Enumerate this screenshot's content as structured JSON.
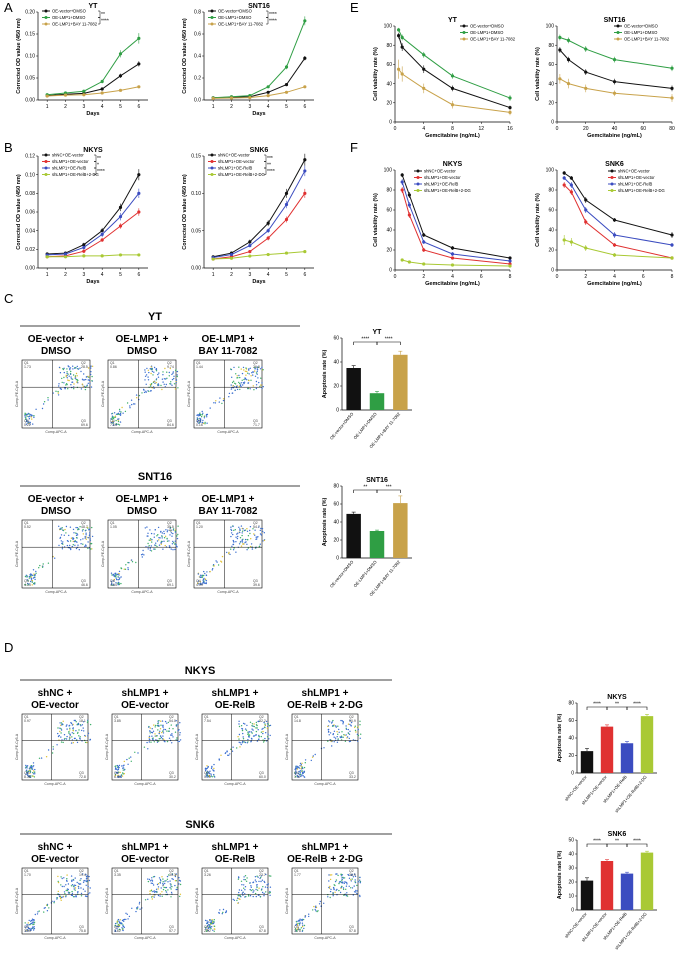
{
  "panels": [
    "A",
    "B",
    "C",
    "D",
    "E",
    "F"
  ],
  "growth_charts": [
    {
      "id": "A-YT",
      "title": "YT",
      "xlabel": "Days",
      "ylabel": "Corrected OD value (450 nm)",
      "x": [
        1,
        2,
        3,
        4,
        5,
        6
      ],
      "ylim": [
        0,
        0.2
      ],
      "yticks": [
        "0.00",
        "0.05",
        "0.10",
        "0.15",
        "0.20"
      ],
      "series": [
        {
          "name": "OE-vector+DMSO",
          "color": "#111111",
          "values": [
            0.01,
            0.013,
            0.015,
            0.025,
            0.055,
            0.082
          ],
          "err": [
            0.001,
            0.001,
            0.002,
            0.003,
            0.005,
            0.006
          ]
        },
        {
          "name": "OE-LMP1+DMSO",
          "color": "#2f9e44",
          "values": [
            0.012,
            0.016,
            0.02,
            0.042,
            0.105,
            0.14
          ],
          "err": [
            0.001,
            0.001,
            0.002,
            0.004,
            0.008,
            0.012
          ]
        },
        {
          "name": "OE-LMP1+BAY 11-7082",
          "color": "#c8a24a",
          "values": [
            0.009,
            0.011,
            0.012,
            0.016,
            0.022,
            0.03
          ],
          "err": [
            0.001,
            0.001,
            0.001,
            0.002,
            0.002,
            0.003
          ]
        }
      ],
      "stars": [
        "**",
        "****"
      ]
    },
    {
      "id": "A-SNT16",
      "title": "SNT16",
      "xlabel": "Days",
      "ylabel": "Corrected OD value (450 nm)",
      "x": [
        1,
        2,
        3,
        4,
        5,
        6
      ],
      "ylim": [
        0,
        0.8
      ],
      "yticks": [
        "0.0",
        "0.2",
        "0.4",
        "0.6",
        "0.8"
      ],
      "series": [
        {
          "name": "OE-vector+DMSO",
          "color": "#111111",
          "values": [
            0.02,
            0.025,
            0.03,
            0.07,
            0.14,
            0.38
          ],
          "err": [
            0.003,
            0.003,
            0.004,
            0.006,
            0.01,
            0.02
          ]
        },
        {
          "name": "OE-LMP1+DMSO",
          "color": "#2f9e44",
          "values": [
            0.02,
            0.03,
            0.04,
            0.12,
            0.3,
            0.72
          ],
          "err": [
            0.003,
            0.004,
            0.005,
            0.01,
            0.02,
            0.04
          ]
        },
        {
          "name": "OE-LMP1+BAY 11-7082",
          "color": "#c8a24a",
          "values": [
            0.015,
            0.018,
            0.022,
            0.04,
            0.07,
            0.12
          ],
          "err": [
            0.002,
            0.002,
            0.003,
            0.004,
            0.006,
            0.008
          ]
        }
      ],
      "stars": [
        "****",
        "****"
      ]
    },
    {
      "id": "B-NKYS",
      "title": "NKYS",
      "xlabel": "Days",
      "ylabel": "Corrected OD value (450 nm)",
      "x": [
        1,
        2,
        3,
        4,
        5,
        6
      ],
      "ylim": [
        0,
        0.12
      ],
      "yticks": [
        "0.00",
        "0.02",
        "0.04",
        "0.06",
        "0.08",
        "0.10",
        "0.12"
      ],
      "series": [
        {
          "name": "shNC+OE-vector",
          "color": "#111111",
          "values": [
            0.015,
            0.016,
            0.025,
            0.04,
            0.065,
            0.1
          ],
          "err": [
            0.001,
            0.001,
            0.002,
            0.003,
            0.004,
            0.006
          ]
        },
        {
          "name": "shLMP1+OE-vector",
          "color": "#e03131",
          "values": [
            0.012,
            0.013,
            0.018,
            0.03,
            0.045,
            0.06
          ],
          "err": [
            0.001,
            0.001,
            0.002,
            0.002,
            0.003,
            0.004
          ]
        },
        {
          "name": "shLMP1+OE-RelB",
          "color": "#3b4cc0",
          "values": [
            0.014,
            0.015,
            0.022,
            0.036,
            0.055,
            0.08
          ],
          "err": [
            0.001,
            0.001,
            0.002,
            0.003,
            0.004,
            0.005
          ]
        },
        {
          "name": "shLMP1+OE-RelB+2-DG",
          "color": "#a9c934",
          "values": [
            0.012,
            0.012,
            0.013,
            0.013,
            0.014,
            0.014
          ],
          "err": [
            0.001,
            0.001,
            0.001,
            0.001,
            0.001,
            0.001
          ]
        }
      ],
      "stars": [
        "**",
        "*",
        "****"
      ]
    },
    {
      "id": "B-SNK6",
      "title": "SNK6",
      "xlabel": "Days",
      "ylabel": "Corrected OD value (450 nm)",
      "x": [
        1,
        2,
        3,
        4,
        5,
        6
      ],
      "ylim": [
        0,
        0.15
      ],
      "yticks": [
        "0.00",
        "0.05",
        "0.10",
        "0.15"
      ],
      "series": [
        {
          "name": "shNC+OE-vector",
          "color": "#111111",
          "values": [
            0.015,
            0.02,
            0.035,
            0.06,
            0.1,
            0.145
          ],
          "err": [
            0.001,
            0.002,
            0.003,
            0.004,
            0.006,
            0.008
          ]
        },
        {
          "name": "shLMP1+OE-vector",
          "color": "#e03131",
          "values": [
            0.012,
            0.015,
            0.022,
            0.04,
            0.065,
            0.1
          ],
          "err": [
            0.001,
            0.001,
            0.002,
            0.003,
            0.004,
            0.006
          ]
        },
        {
          "name": "shLMP1+OE-RelB",
          "color": "#3b4cc0",
          "values": [
            0.014,
            0.018,
            0.03,
            0.05,
            0.085,
            0.13
          ],
          "err": [
            0.001,
            0.001,
            0.002,
            0.003,
            0.005,
            0.007
          ]
        },
        {
          "name": "shLMP1+OE-RelB+2-DG",
          "color": "#a9c934",
          "values": [
            0.012,
            0.013,
            0.016,
            0.018,
            0.02,
            0.022
          ],
          "err": [
            0.001,
            0.001,
            0.001,
            0.002,
            0.002,
            0.002
          ]
        }
      ],
      "stars": [
        "***",
        "**",
        "****"
      ]
    }
  ],
  "viability_charts": [
    {
      "id": "E-YT",
      "title": "YT",
      "xlabel": "Gemcitabine (ng/mL)",
      "ylabel": "Cell viability rate (%)",
      "x": [
        0.5,
        1,
        4,
        8,
        16
      ],
      "xlim": [
        0,
        16
      ],
      "xticks": [
        "0",
        "4",
        "8",
        "12",
        "16"
      ],
      "ylim": [
        0,
        100
      ],
      "yticks": [
        "0",
        "20",
        "40",
        "60",
        "80",
        "100"
      ],
      "series": [
        {
          "name": "OE-vector+DMSO",
          "color": "#111111",
          "values": [
            90,
            78,
            55,
            35,
            15
          ],
          "err": [
            3,
            4,
            4,
            3,
            2
          ]
        },
        {
          "name": "OE-LMP1+DMSO",
          "color": "#2f9e44",
          "values": [
            96,
            88,
            70,
            48,
            25
          ],
          "err": [
            2,
            3,
            3,
            3,
            3
          ]
        },
        {
          "name": "OE-LMP1+BAY 11-7082",
          "color": "#c8a24a",
          "values": [
            55,
            50,
            35,
            18,
            10
          ],
          "err": [
            10,
            8,
            5,
            4,
            3
          ]
        }
      ]
    },
    {
      "id": "E-SNT16",
      "title": "SNT16",
      "xlabel": "Gemcitabine (ng/mL)",
      "ylabel": "Cell viability rate (%)",
      "x": [
        2,
        8,
        20,
        40,
        80
      ],
      "xlim": [
        0,
        80
      ],
      "xticks": [
        "0",
        "20",
        "40",
        "60",
        "80"
      ],
      "ylim": [
        0,
        100
      ],
      "yticks": [
        "0",
        "20",
        "40",
        "60",
        "80",
        "100"
      ],
      "series": [
        {
          "name": "OE-vector+DMSO",
          "color": "#111111",
          "values": [
            75,
            65,
            52,
            42,
            35
          ],
          "err": [
            3,
            3,
            3,
            3,
            3
          ]
        },
        {
          "name": "OE-LMP1+DMSO",
          "color": "#2f9e44",
          "values": [
            88,
            85,
            76,
            65,
            56
          ],
          "err": [
            3,
            3,
            3,
            3,
            3
          ]
        },
        {
          "name": "OE-LMP1+BAY 11-7082",
          "color": "#c8a24a",
          "values": [
            45,
            40,
            35,
            30,
            25
          ],
          "err": [
            5,
            5,
            4,
            3,
            4
          ]
        }
      ]
    },
    {
      "id": "F-NKYS",
      "title": "NKYS",
      "xlabel": "Gemcitabine (ng/mL)",
      "ylabel": "Cell viability rate (%)",
      "x": [
        0.5,
        1,
        2,
        4,
        8
      ],
      "xlim": [
        0,
        8
      ],
      "xticks": [
        "0",
        "2",
        "4",
        "6",
        "8"
      ],
      "ylim": [
        0,
        100
      ],
      "yticks": [
        "0",
        "20",
        "40",
        "60",
        "80",
        "100"
      ],
      "series": [
        {
          "name": "shNC+OE-vector",
          "color": "#111111",
          "values": [
            95,
            75,
            35,
            22,
            12
          ],
          "err": [
            2,
            3,
            2,
            2,
            1
          ]
        },
        {
          "name": "shLMP1+OE-vector",
          "color": "#e03131",
          "values": [
            80,
            55,
            20,
            12,
            6
          ],
          "err": [
            3,
            3,
            2,
            1,
            1
          ]
        },
        {
          "name": "shLMP1+OE-RelB",
          "color": "#3b4cc0",
          "values": [
            88,
            65,
            28,
            16,
            9
          ],
          "err": [
            3,
            3,
            2,
            2,
            1
          ]
        },
        {
          "name": "shLMP1+OE-RelB+2-DG",
          "color": "#a9c934",
          "values": [
            10,
            8,
            6,
            5,
            4
          ],
          "err": [
            1,
            1,
            1,
            1,
            1
          ]
        }
      ]
    },
    {
      "id": "F-SNK6",
      "title": "SNK6",
      "xlabel": "Gemcitabine (ng/mL)",
      "ylabel": "Cell viability rate (%)",
      "x": [
        0.5,
        1,
        2,
        4,
        8
      ],
      "xlim": [
        0,
        8
      ],
      "xticks": [
        "0",
        "2",
        "4",
        "6",
        "8"
      ],
      "ylim": [
        0,
        100
      ],
      "yticks": [
        "0",
        "20",
        "40",
        "60",
        "80",
        "100"
      ],
      "series": [
        {
          "name": "shNC+OE-vector",
          "color": "#111111",
          "values": [
            97,
            92,
            70,
            50,
            35
          ],
          "err": [
            2,
            2,
            3,
            2,
            3
          ]
        },
        {
          "name": "shLMP1+OE-vector",
          "color": "#e03131",
          "values": [
            85,
            78,
            48,
            25,
            12
          ],
          "err": [
            3,
            3,
            3,
            2,
            1
          ]
        },
        {
          "name": "shLMP1+OE-RelB",
          "color": "#3b4cc0",
          "values": [
            92,
            85,
            60,
            35,
            25
          ],
          "err": [
            2,
            3,
            3,
            3,
            2
          ]
        },
        {
          "name": "shLMP1+OE-RelB+2-DG",
          "color": "#a9c934",
          "values": [
            30,
            28,
            22,
            15,
            12
          ],
          "err": [
            5,
            4,
            3,
            2,
            2
          ]
        }
      ]
    }
  ],
  "bar_charts": [
    {
      "id": "C-YT",
      "title": "YT",
      "ylabel": "Apoptosis rate (%)",
      "ylim": [
        0,
        60
      ],
      "yticks": [
        "0",
        "20",
        "40",
        "60"
      ],
      "categories": [
        "OE-vector+DMSO",
        "OE-LMP1+DMSO",
        "OE-LMP1+BAY 11-7082"
      ],
      "values": [
        35,
        14,
        46
      ],
      "err": [
        2,
        1.5,
        3
      ],
      "colors": [
        "#111111",
        "#2f9e44",
        "#c8a24a"
      ],
      "stars": [
        "****",
        "****"
      ]
    },
    {
      "id": "C-SNT16",
      "title": "SNT16",
      "ylabel": "Apoptosis rate (%)",
      "ylim": [
        0,
        80
      ],
      "yticks": [
        "0",
        "20",
        "40",
        "60",
        "80"
      ],
      "categories": [
        "OE-vector+DMSO",
        "OE-LMP1+DMSO",
        "OE-LMP1+BAY 11-7082"
      ],
      "values": [
        49,
        30,
        61
      ],
      "err": [
        2,
        1,
        8
      ],
      "colors": [
        "#111111",
        "#2f9e44",
        "#c8a24a"
      ],
      "stars": [
        "**",
        "***"
      ]
    },
    {
      "id": "D-NKYS",
      "title": "NKYS",
      "ylabel": "Apoptosis rate (%)",
      "ylim": [
        0,
        80
      ],
      "yticks": [
        "0",
        "20",
        "40",
        "60",
        "80"
      ],
      "categories": [
        "shNC+OE-vector",
        "shLMP1+OE-vector",
        "shLMP1+OE-RelB",
        "shLMP1+OE-RelB+2-DG"
      ],
      "values": [
        25,
        53,
        34,
        65
      ],
      "err": [
        3,
        2,
        2,
        2
      ],
      "colors": [
        "#111111",
        "#e03131",
        "#3b4cc0",
        "#a9c934"
      ],
      "stars": [
        "****",
        "**",
        "****"
      ]
    },
    {
      "id": "D-SNK6",
      "title": "SNK6",
      "ylabel": "Apoptosis rate (%)",
      "ylim": [
        0,
        50
      ],
      "yticks": [
        "0",
        "10",
        "20",
        "30",
        "40",
        "50"
      ],
      "categories": [
        "shNC+OE-vector",
        "shLMP1+OE-vector",
        "shLMP1+OE-RelB",
        "shLMP1+OE-RelB+2-DG"
      ],
      "values": [
        21,
        35,
        26,
        41
      ],
      "err": [
        2,
        1,
        1,
        1
      ],
      "colors": [
        "#111111",
        "#e03131",
        "#3b4cc0",
        "#a9c934"
      ],
      "stars": [
        "****",
        "**",
        "****"
      ]
    }
  ],
  "flow_blocks": [
    {
      "id": "C-YT",
      "title": "YT",
      "conditions": [
        [
          "OE-vector +",
          "DMSO"
        ],
        [
          "OE-LMP1 +",
          "DMSO"
        ],
        [
          "OE-LMP1 +",
          "BAY 11-7082"
        ]
      ],
      "quads": [
        [
          "1.73",
          "28.5",
          "69.6",
          "0.22"
        ],
        [
          "0.86",
          "9.74",
          "84.6",
          "7.64"
        ],
        [
          "1.44",
          "26.8",
          "71.7",
          "0.16"
        ]
      ]
    },
    {
      "id": "C-SNT16",
      "title": "SNT16",
      "conditions": [
        [
          "OE-vector +",
          "DMSO"
        ],
        [
          "OE-LMP1 +",
          "DMSO"
        ],
        [
          "OE-LMP1 +",
          "BAY 11-7082"
        ]
      ],
      "quads": [
        [
          "0.52",
          "48.7",
          "46.6",
          "4.13"
        ],
        [
          "1.05",
          "35.5",
          "69.1",
          "4.64"
        ],
        [
          "1.20",
          "54.7",
          "39.6",
          "4.09"
        ]
      ]
    },
    {
      "id": "D-NKYS",
      "title": "NKYS",
      "conditions": [
        [
          "shNC +",
          "OE-vector"
        ],
        [
          "shLMP1 +",
          "OE-vector"
        ],
        [
          "shLMP1 +",
          "OE-RelB"
        ],
        [
          "shLMP1 +",
          "OE-RelB + 2-DG"
        ]
      ],
      "quads": [
        [
          "0.97",
          "18.1",
          "72.8",
          "8.38"
        ],
        [
          "3.85",
          "54.0",
          "30.2",
          "6.06"
        ],
        [
          "7.54",
          "32.2",
          "60.0",
          "0.71"
        ],
        [
          "14.8",
          "50.9",
          "33.2",
          "1.37"
        ]
      ]
    },
    {
      "id": "D-SNK6",
      "title": "SNK6",
      "conditions": [
        [
          "shNC +",
          "OE-vector"
        ],
        [
          "shLMP1 +",
          "OE-vector"
        ],
        [
          "shLMP1 +",
          "OE-RelB"
        ],
        [
          "shLMP1 +",
          "OE-RelB + 2-DG"
        ]
      ],
      "quads": [
        [
          "1.70",
          "19.4",
          "75.8",
          "3.05"
        ],
        [
          "3.35",
          "35.3",
          "57.7",
          "3.62"
        ],
        [
          "3.26",
          "23.7",
          "67.8",
          "2.52"
        ],
        [
          "1.77",
          "38.9",
          "57.8",
          "3.78"
        ]
      ]
    }
  ],
  "flow_axes": {
    "x": "Comp-APC-A",
    "y": "Comp-PE-Cy5-A",
    "q": [
      "Q1",
      "Q2",
      "Q3",
      "Q4"
    ]
  }
}
